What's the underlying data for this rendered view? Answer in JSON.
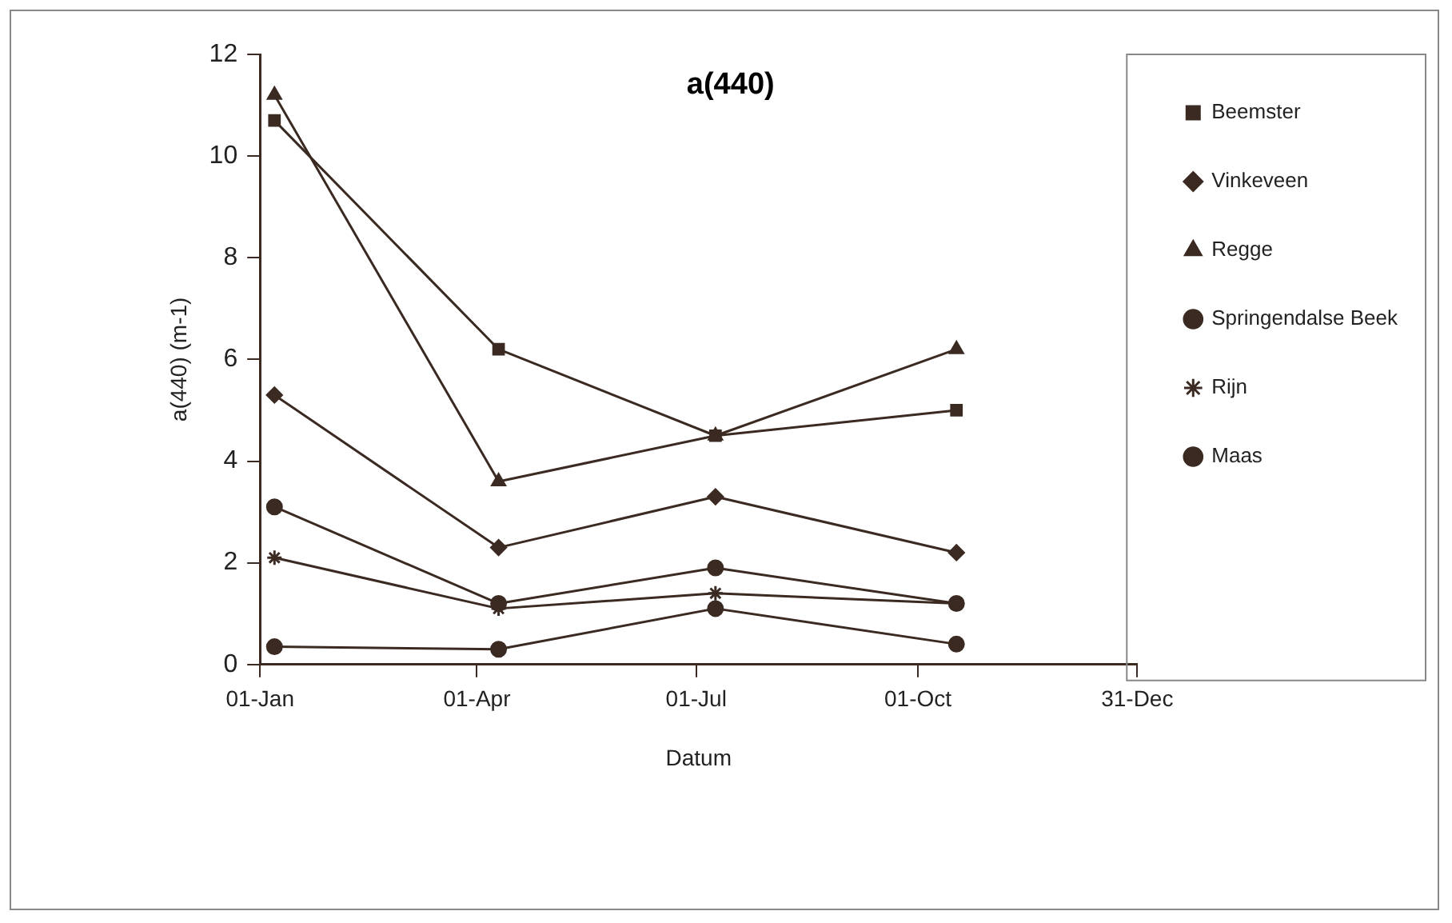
{
  "chart_data": {
    "type": "line",
    "title": "a(440)",
    "xlabel": "Datum",
    "ylabel": "a(440) (m-1)",
    "x": [
      "--01-07",
      "--04-10",
      "--07-09",
      "--10-17"
    ],
    "xlim": [
      "--01-01",
      "--12-31"
    ],
    "xticks": [
      {
        "value": "--01-01",
        "label": "01-Jan"
      },
      {
        "value": "--04-01",
        "label": "01-Apr"
      },
      {
        "value": "--07-01",
        "label": "01-Jul"
      },
      {
        "value": "--10-01",
        "label": "01-Oct"
      },
      {
        "value": "--12-31",
        "label": "31-Dec"
      }
    ],
    "ylim": [
      0,
      12
    ],
    "yticks": [
      0,
      2,
      4,
      6,
      8,
      10,
      12
    ],
    "grid": false,
    "legend": "right",
    "line_style": "solid",
    "series": [
      {
        "name": "Beemster",
        "color": "#3a2a22",
        "marker": "square",
        "values": [
          10.7,
          6.2,
          4.5,
          5.0
        ]
      },
      {
        "name": "Vinkeveen",
        "color": "#3a2a22",
        "marker": "diamond",
        "values": [
          5.3,
          2.3,
          3.3,
          2.2
        ]
      },
      {
        "name": "Regge",
        "color": "#3a2a22",
        "marker": "triangle",
        "values": [
          11.2,
          3.6,
          4.5,
          6.2
        ]
      },
      {
        "name": "Springendalse Beek",
        "color": "#3a2a22",
        "marker": "circle",
        "values": [
          0.35,
          0.3,
          1.1,
          0.4
        ]
      },
      {
        "name": "Rijn",
        "color": "#3a2a22",
        "marker": "cross",
        "values": [
          2.1,
          1.1,
          1.4,
          1.2
        ]
      },
      {
        "name": "Maas",
        "color": "#3a2a22",
        "marker": "circle",
        "values": [
          3.1,
          1.2,
          1.9,
          1.2
        ]
      }
    ]
  }
}
